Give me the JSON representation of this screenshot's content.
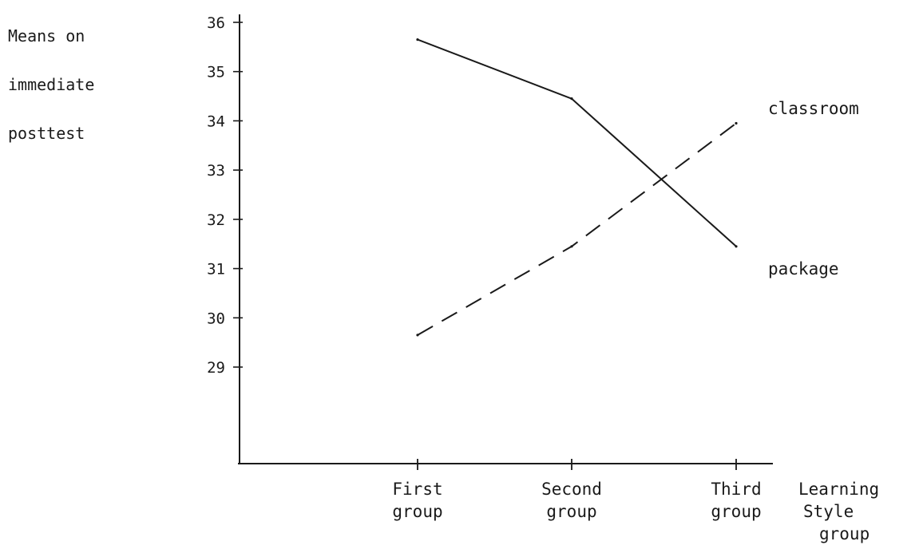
{
  "chart_data": {
    "type": "line",
    "title": "",
    "ylabel": [
      "Means on",
      "immediate",
      "posttest"
    ],
    "xlabel": [
      "Learning",
      "Style",
      "group"
    ],
    "categories": [
      [
        "First",
        "group"
      ],
      [
        "Second",
        "group"
      ],
      [
        "Third",
        "group"
      ]
    ],
    "yticks": [
      29,
      30,
      31,
      32,
      33,
      34,
      35,
      36
    ],
    "ylim": [
      29,
      36
    ],
    "series": [
      {
        "name": "package",
        "style": "solid",
        "values": [
          35.65,
          34.45,
          31.45
        ]
      },
      {
        "name": "classroom",
        "style": "dashed",
        "values": [
          29.65,
          31.45,
          33.95
        ]
      }
    ],
    "grid": false,
    "colors": {
      "ink": "#1a1a1a",
      "background": "#ffffff"
    }
  }
}
